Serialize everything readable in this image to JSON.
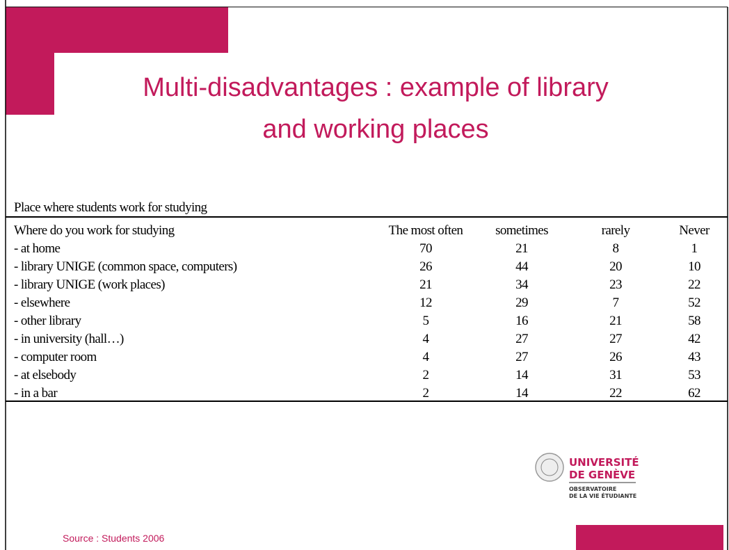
{
  "title": {
    "lines": [
      "Multi-disadvantages : example of library",
      "and working places"
    ]
  },
  "table": {
    "caption": "Place where students work for studying",
    "header": [
      "Where do you work for studying",
      "The most often",
      "sometimes",
      "rarely",
      "Never"
    ],
    "rows": [
      [
        "- at home",
        70,
        21,
        8,
        1
      ],
      [
        "- library UNIGE (common space, computers)",
        26,
        44,
        20,
        10
      ],
      [
        "- library UNIGE (work places)",
        21,
        34,
        23,
        22
      ],
      [
        "- elsewhere",
        12,
        29,
        7,
        52
      ],
      [
        "- other library",
        5,
        16,
        21,
        58
      ],
      [
        "- in university (hall…)",
        4,
        27,
        27,
        42
      ],
      [
        "- computer room",
        4,
        27,
        26,
        43
      ],
      [
        "- at elsebody",
        2,
        14,
        31,
        53
      ],
      [
        "- in a bar",
        2,
        14,
        22,
        62
      ]
    ]
  },
  "logo": {
    "name_lines": [
      "UNIVERSITÉ",
      "DE GENÈVE"
    ],
    "sub_lines": [
      "OBSERVATOIRE",
      "DE LA VIE ÉTUDIANTE"
    ]
  },
  "source": "Source : Students 2006"
}
